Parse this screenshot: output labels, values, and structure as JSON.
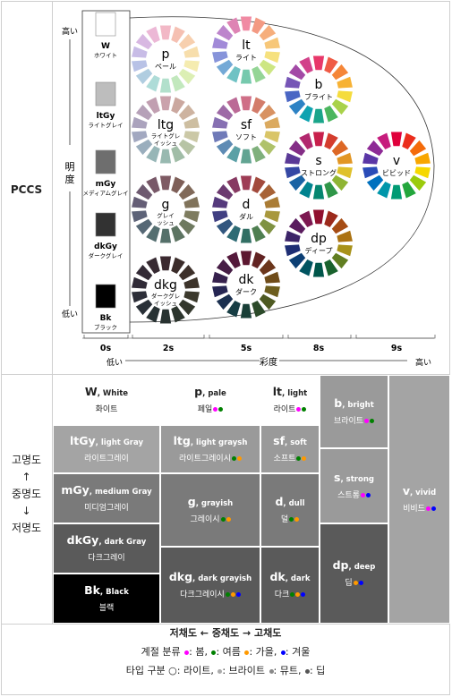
{
  "pccs_label": "PCCS",
  "lightness_axis": {
    "high": "高い",
    "label": "明度",
    "low": "低い"
  },
  "chroma_axis": {
    "low": "低い",
    "label": "彩度",
    "high": "高い",
    "ticks": [
      "0s",
      "2s",
      "5s",
      "8s",
      "9s"
    ]
  },
  "grays": [
    {
      "code": "W",
      "name": "ホワイト",
      "color": "#ffffff"
    },
    {
      "code": "ltGy",
      "name": "ライトグレイ",
      "color": "#bdbdbd"
    },
    {
      "code": "mGy",
      "name": "メディアムグレイ",
      "color": "#6e6e6e"
    },
    {
      "code": "dkGy",
      "name": "ダークグレイ",
      "color": "#323232"
    },
    {
      "code": "Bk",
      "name": "ブラック",
      "color": "#000000"
    }
  ],
  "tone_wheels": [
    {
      "code": "p",
      "name": "ペール",
      "colors": [
        "#f2b8c6",
        "#f5c0b2",
        "#f7cfae",
        "#f7deac",
        "#f5ecb0",
        "#dcefb4",
        "#c2e8bd",
        "#b2e0cc",
        "#aedcd8",
        "#b0cde0",
        "#b8c2e6",
        "#c8bce6",
        "#d8b8e2",
        "#ecb8d6"
      ]
    },
    {
      "code": "lt",
      "name": "ライト",
      "colors": [
        "#f08aa3",
        "#f39a83",
        "#f6ae7c",
        "#f7c779",
        "#f6e17e",
        "#cde683",
        "#94d596",
        "#76c9ad",
        "#70c2c4",
        "#74a9d6",
        "#8794da",
        "#a28ad8",
        "#bd85cc",
        "#de84b4"
      ]
    },
    {
      "code": "b",
      "name": "ブライト",
      "colors": [
        "#e8386a",
        "#ef5b45",
        "#f58638",
        "#f7b235",
        "#f5dc3d",
        "#a9d24a",
        "#4bb65e",
        "#1aa58a",
        "#0ea3b0",
        "#2d82c4",
        "#4a66c4",
        "#7655b6",
        "#a34aa6",
        "#d2428a"
      ]
    },
    {
      "code": "ltg",
      "name": "ライトグレイッシュ",
      "colors": [
        "#caa2ac",
        "#cba89f",
        "#cdb3a0",
        "#cdbea1",
        "#cbc8a6",
        "#b7c4a5",
        "#a1bda7",
        "#98b9b0",
        "#97b6b7",
        "#9aaebd",
        "#a2a8c0",
        "#aba3bd",
        "#b6a1b8",
        "#c19fb1"
      ]
    },
    {
      "code": "sf",
      "name": "ソフト",
      "colors": [
        "#cf6f87",
        "#d37c6a",
        "#d89262",
        "#dbaa60",
        "#d9c567",
        "#afc26a",
        "#7fb07c",
        "#62a492",
        "#5ba0a6",
        "#5e8bb4",
        "#6f7ab8",
        "#8770b2",
        "#9e6aa6",
        "#bb6a96"
      ]
    },
    {
      "code": "s",
      "name": "ストロング",
      "colors": [
        "#c8204c",
        "#d43d2e",
        "#dd6825",
        "#e29624",
        "#dfc12b",
        "#8fb534",
        "#2f9648",
        "#058670",
        "#00838f",
        "#1a63a4",
        "#3548a4",
        "#5a3996",
        "#842d86",
        "#b2286e"
      ]
    },
    {
      "code": "v",
      "name": "ビビッド",
      "colors": [
        "#e0003c",
        "#eb2d1c",
        "#f46b0a",
        "#f8a600",
        "#f6d800",
        "#9bcb0c",
        "#23a63c",
        "#009b74",
        "#0096aa",
        "#0070be",
        "#2a4cb8",
        "#5a36a6",
        "#8e2a96",
        "#c61c7c"
      ]
    },
    {
      "code": "g",
      "name": "グレイッシュ",
      "colors": [
        "#7e5a63",
        "#7e5f58",
        "#806959",
        "#80735b",
        "#7e7c5f",
        "#6f7a60",
        "#5d7462",
        "#55706a",
        "#546e70",
        "#566875",
        "#5d6378",
        "#655e76",
        "#6e5a70",
        "#785868"
      ]
    },
    {
      "code": "d",
      "name": "ダル",
      "colors": [
        "#9e3c55",
        "#a24a3c",
        "#a76236",
        "#aa7c35",
        "#a8983d",
        "#7f9242",
        "#4f7f51",
        "#326f64",
        "#2e6b74",
        "#32577f",
        "#403f82",
        "#553a7c",
        "#6c3a70",
        "#873a62"
      ]
    },
    {
      "code": "dp",
      "name": "ディープ",
      "colors": [
        "#90102f",
        "#9c2a1c",
        "#a64c14",
        "#ab7212",
        "#a8921a",
        "#617e21",
        "#19622d",
        "#00564a",
        "#005460",
        "#0c3f74",
        "#1e2e74",
        "#3c2468",
        "#5a1c5e",
        "#7c1750"
      ]
    },
    {
      "code": "dkg",
      "name": "ダークグレイッシュ",
      "colors": [
        "#3b2a30",
        "#3b2c2a",
        "#3d302a",
        "#3d342b",
        "#3b392c",
        "#33372c",
        "#2c352d",
        "#283331",
        "#283234",
        "#293037",
        "#2c2e38",
        "#302b37",
        "#332a35",
        "#372a32"
      ]
    },
    {
      "code": "dk",
      "name": "ダーク",
      "colors": [
        "#5c1730",
        "#622322",
        "#6b361b",
        "#6f4c19",
        "#6d5e1e",
        "#4e5a22",
        "#2c4a2a",
        "#193f37",
        "#173d44",
        "#1b3050",
        "#262653",
        "#36214d",
        "#461d45",
        "#54193b"
      ]
    }
  ],
  "korean_table": {
    "row_labels": [
      "고명도",
      "↑",
      "중명도",
      "↓",
      "저명도"
    ],
    "cells": [
      {
        "en": "W",
        "en_sub": "White",
        "ko": "화이트",
        "dots": []
      },
      {
        "en": "p",
        "en_sub": "pale",
        "ko": "페일",
        "dots": [
          "#ff00ff",
          "#008000"
        ]
      },
      {
        "en": "lt",
        "en_sub": "light",
        "ko": "라이트",
        "dots": [
          "#ff00ff",
          "#008000"
        ]
      },
      {
        "en": "b",
        "en_sub": "bright",
        "ko": "브라이트",
        "dots": [
          "#ff00ff",
          "#008000"
        ]
      },
      {
        "en": "ltGy",
        "en_sub": "light Gray",
        "ko": "라이트그레이",
        "dots": []
      },
      {
        "en": "ltg",
        "en_sub": "light graysh",
        "ko": "라이트그레이시",
        "dots": [
          "#008000",
          "#ff9900"
        ]
      },
      {
        "en": "sf",
        "en_sub": "soft",
        "ko": "소프트",
        "dots": [
          "#008000",
          "#ff9900"
        ]
      },
      {
        "en": "s",
        "en_sub": "strong",
        "ko": "스트롱",
        "dots": [
          "#ff00ff",
          "#0000ff"
        ]
      },
      {
        "en": "v",
        "en_sub": "vivid",
        "ko": "비비드",
        "dots": [
          "#ff00ff",
          "#0000ff"
        ]
      },
      {
        "en": "mGy",
        "en_sub": "medium Gray",
        "ko": "미디엄그레이",
        "dots": []
      },
      {
        "en": "g",
        "en_sub": "grayish",
        "ko": "그레이시",
        "dots": [
          "#008000",
          "#ff9900"
        ]
      },
      {
        "en": "d",
        "en_sub": "dull",
        "ko": "덜",
        "dots": [
          "#008000",
          "#ff9900"
        ]
      },
      {
        "en": "dkGy",
        "en_sub": "dark Gray",
        "ko": "다크그레이",
        "dots": []
      },
      {
        "en": "dp",
        "en_sub": "deep",
        "ko": "딥",
        "dots": [
          "#ff9900",
          "#0000ff"
        ]
      },
      {
        "en": "dkg",
        "en_sub": "dark grayish",
        "ko": "다크그레이시",
        "dots": [
          "#008000",
          "#ff9900",
          "#0000ff"
        ]
      },
      {
        "en": "dk",
        "en_sub": "dark",
        "ko": "다크",
        "dots": [
          "#008000",
          "#ff9900",
          "#0000ff"
        ]
      },
      {
        "en": "Bk",
        "en_sub": "Black",
        "ko": "블랙",
        "dots": []
      }
    ]
  },
  "footer": {
    "chroma_line": "저채도 ← 중채도 → 고채도",
    "season_prefix": "계절 분류",
    "seasons": [
      {
        "color": "#ff00ff",
        "text": ": 봄, "
      },
      {
        "color": "#008000",
        "text": ": 여름 "
      },
      {
        "color": "#ff9900",
        "text": ": 가을, "
      },
      {
        "color": "#0000ff",
        "text": ": 겨울"
      }
    ],
    "type_prefix": "타입 구분 ○: 라이트, ",
    "types": [
      {
        "color": "#aaaaaa",
        "text": ": 브라이트 "
      },
      {
        "color": "#888888",
        "text": ": 뮤트, "
      },
      {
        "color": "#555555",
        "text": ": 딥"
      }
    ]
  }
}
